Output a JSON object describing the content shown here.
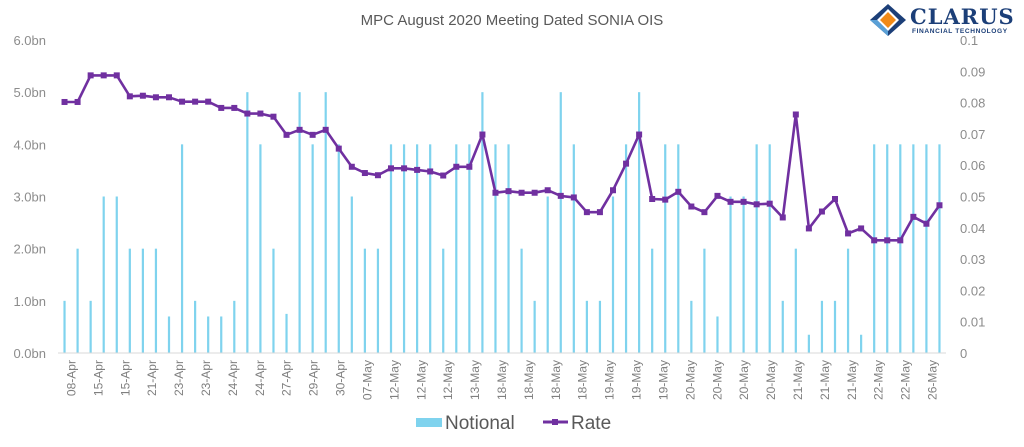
{
  "chart_data": {
    "type": "bar+line",
    "title": "MPC August 2020 Meeting Dated SONIA OIS",
    "y_left": {
      "ticks": [
        "0.0bn",
        "1.0bn",
        "2.0bn",
        "3.0bn",
        "4.0bn",
        "5.0bn",
        "6.0bn"
      ],
      "min": 0,
      "max": 6
    },
    "y_right": {
      "ticks": [
        "0",
        "0.01",
        "0.02",
        "0.03",
        "0.04",
        "0.05",
        "0.06",
        "0.07",
        "0.08",
        "0.09",
        "0.1"
      ],
      "min": 0,
      "max": 0.1
    },
    "x_tick_labels": [
      "08-Apr",
      "15-Apr",
      "15-Apr",
      "21-Apr",
      "23-Apr",
      "23-Apr",
      "24-Apr",
      "24-Apr",
      "27-Apr",
      "29-Apr",
      "30-Apr",
      "07-May",
      "12-May",
      "12-May",
      "12-May",
      "13-May",
      "18-May",
      "18-May",
      "18-May",
      "18-May",
      "19-May",
      "19-May",
      "19-May",
      "20-May",
      "20-May",
      "20-May",
      "20-May",
      "21-May",
      "21-May",
      "21-May",
      "22-May",
      "22-May",
      "26-May"
    ],
    "series": [
      {
        "name": "Notional",
        "type": "bar",
        "color": "#7fd3ee",
        "values": [
          1,
          2,
          1,
          3,
          3,
          2,
          2,
          2,
          0.7,
          4,
          1,
          0.7,
          0.7,
          1,
          5,
          4,
          2,
          0.75,
          5,
          4,
          5,
          4,
          3,
          2,
          2,
          4,
          4,
          4,
          4,
          2,
          4,
          4,
          5,
          4,
          4,
          2,
          1,
          3,
          5,
          4,
          1,
          1,
          3,
          4,
          5,
          2,
          4,
          4,
          1,
          2,
          0.7,
          3,
          3,
          4,
          4,
          1,
          2,
          0.35,
          1,
          1,
          2,
          0.35,
          4,
          4,
          4,
          4,
          4,
          4
        ]
      },
      {
        "name": "Rate",
        "type": "line",
        "color": "#7030a0",
        "values": [
          0.0802,
          0.0802,
          0.0887,
          0.0887,
          0.0887,
          0.082,
          0.0822,
          0.0817,
          0.0817,
          0.0803,
          0.0803,
          0.0803,
          0.0783,
          0.0783,
          0.0765,
          0.0765,
          0.0755,
          0.0697,
          0.0713,
          0.0697,
          0.0713,
          0.0653,
          0.0595,
          0.0575,
          0.0568,
          0.059,
          0.059,
          0.0585,
          0.058,
          0.0567,
          0.0595,
          0.0595,
          0.0698,
          0.0512,
          0.0517,
          0.0512,
          0.0512,
          0.052,
          0.0502,
          0.0497,
          0.045,
          0.045,
          0.052,
          0.0605,
          0.0698,
          0.0492,
          0.049,
          0.0515,
          0.0468,
          0.045,
          0.0502,
          0.0483,
          0.0483,
          0.0475,
          0.0477,
          0.0433,
          0.0762,
          0.0398,
          0.0452,
          0.0492,
          0.0382,
          0.0398,
          0.036,
          0.036,
          0.036,
          0.0435,
          0.0413,
          0.0472
        ]
      }
    ],
    "legend": {
      "position": "bottom",
      "items": [
        "Notional",
        "Rate"
      ]
    }
  },
  "branding": {
    "name": "CLARUS",
    "tagline": "FINANCIAL TECHNOLOGY"
  }
}
